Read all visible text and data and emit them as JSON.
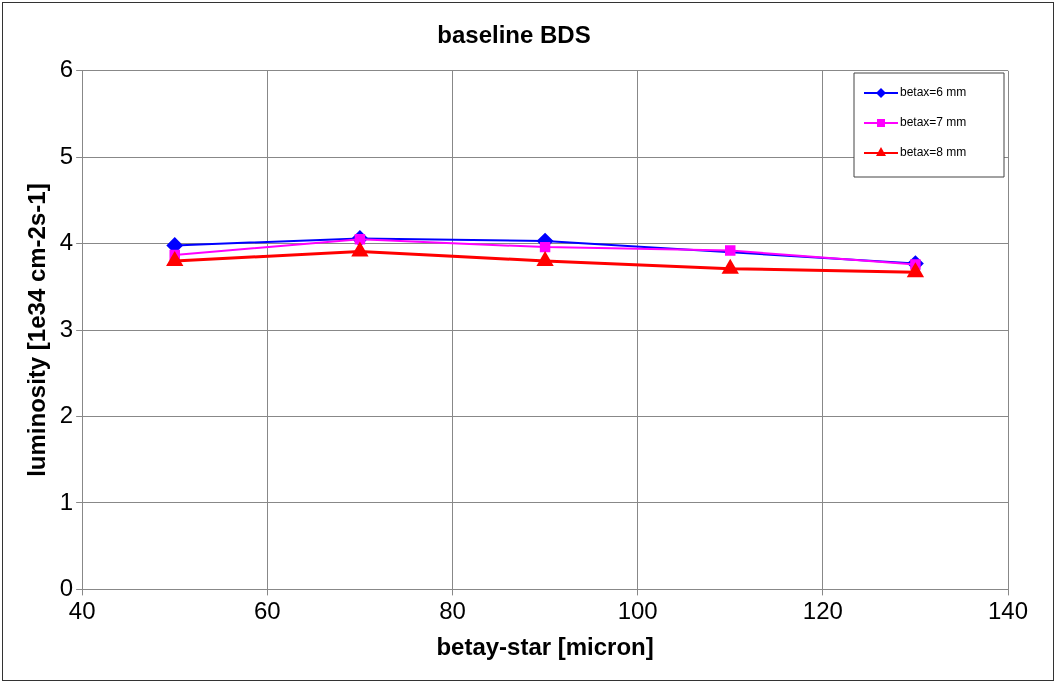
{
  "chart_data": {
    "type": "line",
    "title": "baseline BDS",
    "xlabel": "betay-star [micron]",
    "ylabel": "luminosity [1e34 cm-2s-1]",
    "xlim": [
      40,
      140
    ],
    "xticks": [
      40,
      60,
      80,
      100,
      120,
      140
    ],
    "ylim": [
      0,
      6
    ],
    "yticks": [
      0,
      1,
      2,
      3,
      4,
      5,
      6
    ],
    "grid": true,
    "legend": "top right",
    "series": [
      {
        "name": "betax=6 mm",
        "color": "#0000ff",
        "marker": "diamond",
        "x": [
          50,
          70,
          90,
          130
        ],
        "values": [
          3.98,
          4.06,
          4.03,
          3.77
        ]
      },
      {
        "name": "betax=7 mm",
        "color": "#ff00ff",
        "marker": "square",
        "x": [
          50,
          70,
          90,
          110,
          130
        ],
        "values": [
          3.87,
          4.05,
          3.96,
          3.92,
          3.76
        ]
      },
      {
        "name": "betax=8 mm",
        "color": "#ff0000",
        "marker": "triangle",
        "x": [
          50,
          70,
          90,
          110,
          130
        ],
        "values": [
          3.8,
          3.91,
          3.8,
          3.71,
          3.67
        ]
      }
    ]
  }
}
